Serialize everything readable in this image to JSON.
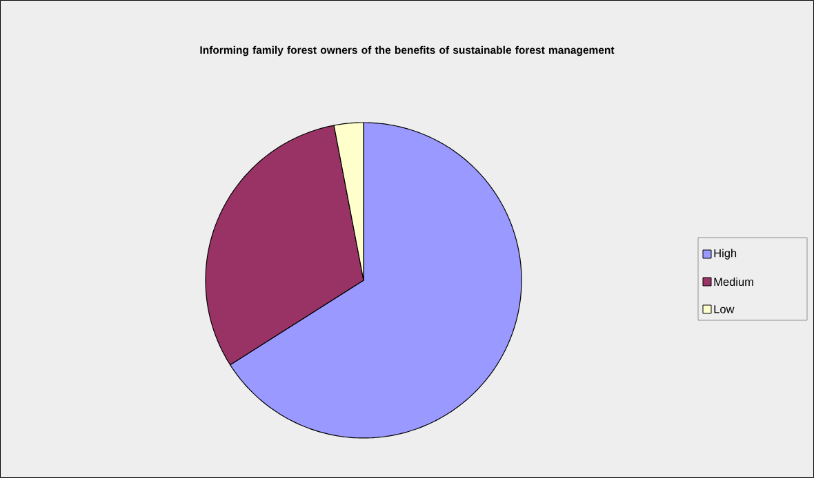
{
  "chart_data": {
    "type": "pie",
    "title": "Informing family forest owners of the benefits of sustainable forest management",
    "categories": [
      "High",
      "Medium",
      "Low"
    ],
    "values": [
      66,
      31,
      3
    ],
    "colors": [
      "#9999ff",
      "#993366",
      "#ffffcc"
    ],
    "legend": "right"
  }
}
